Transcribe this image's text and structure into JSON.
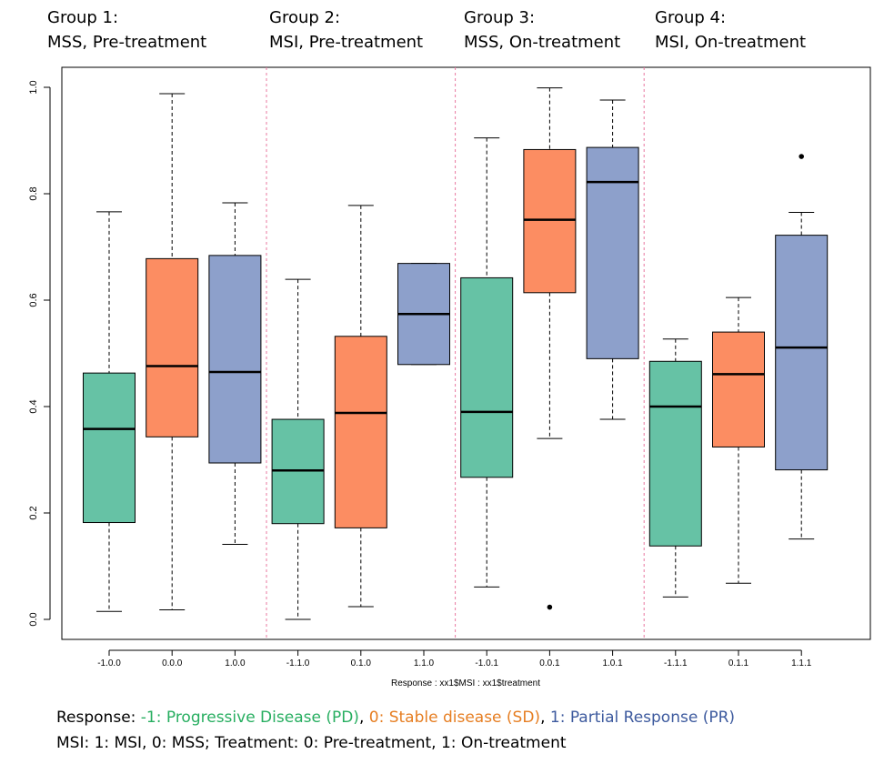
{
  "groups": [
    {
      "title": "Group 1:",
      "subtitle": "MSS, Pre-treatment"
    },
    {
      "title": "Group 2:",
      "subtitle": "MSI, Pre-treatment"
    },
    {
      "title": "Group 3:",
      "subtitle": "MSS, On-treatment"
    },
    {
      "title": "Group 4:",
      "subtitle": "MSI, On-treatment"
    }
  ],
  "chart_data": {
    "type": "box",
    "xlabel": "Response : xx1$MSI : xx1$treatment",
    "ylabel": "",
    "ylim": [
      0,
      1
    ],
    "yticks": [
      "0.0",
      "0.2",
      "0.4",
      "0.6",
      "0.8",
      "1.0"
    ],
    "grid": false,
    "categories": [
      "-1.0.0",
      "0.0.0",
      "1.0.0",
      "-1.1.0",
      "0.1.0",
      "1.1.0",
      "-1.0.1",
      "0.0.1",
      "1.0.1",
      "-1.1.1",
      "0.1.1",
      "1.1.1"
    ],
    "response_colors": {
      "-1": "#66c2a5",
      "0": "#fc8d62",
      "1": "#8da0cb"
    },
    "group_separator_color": "#e8779f",
    "boxes": [
      {
        "label": "-1.0.0",
        "response": "-1",
        "whisker_low": 0.015,
        "q1": 0.182,
        "median": 0.358,
        "q3": 0.463,
        "whisker_high": 0.766,
        "outliers": []
      },
      {
        "label": "0.0.0",
        "response": "0",
        "whisker_low": 0.018,
        "q1": 0.343,
        "median": 0.476,
        "q3": 0.678,
        "whisker_high": 0.988,
        "outliers": []
      },
      {
        "label": "1.0.0",
        "response": "1",
        "whisker_low": 0.141,
        "q1": 0.294,
        "median": 0.465,
        "q3": 0.684,
        "whisker_high": 0.783,
        "outliers": []
      },
      {
        "label": "-1.1.0",
        "response": "-1",
        "whisker_low": 0.0,
        "q1": 0.18,
        "median": 0.28,
        "q3": 0.376,
        "whisker_high": 0.639,
        "outliers": []
      },
      {
        "label": "0.1.0",
        "response": "0",
        "whisker_low": 0.024,
        "q1": 0.172,
        "median": 0.388,
        "q3": 0.532,
        "whisker_high": 0.778,
        "outliers": []
      },
      {
        "label": "1.1.0",
        "response": "1",
        "whisker_low": 0.479,
        "q1": 0.479,
        "median": 0.574,
        "q3": 0.669,
        "whisker_high": 0.669,
        "outliers": []
      },
      {
        "label": "-1.0.1",
        "response": "-1",
        "whisker_low": 0.061,
        "q1": 0.267,
        "median": 0.39,
        "q3": 0.642,
        "whisker_high": 0.905,
        "outliers": []
      },
      {
        "label": "0.0.1",
        "response": "0",
        "whisker_low": 0.34,
        "q1": 0.614,
        "median": 0.751,
        "q3": 0.883,
        "whisker_high": 0.999,
        "outliers": [
          0.023
        ]
      },
      {
        "label": "1.0.1",
        "response": "1",
        "whisker_low": 0.376,
        "q1": 0.49,
        "median": 0.822,
        "q3": 0.887,
        "whisker_high": 0.976,
        "outliers": []
      },
      {
        "label": "-1.1.1",
        "response": "-1",
        "whisker_low": 0.042,
        "q1": 0.138,
        "median": 0.4,
        "q3": 0.485,
        "whisker_high": 0.527,
        "outliers": []
      },
      {
        "label": "0.1.1",
        "response": "0",
        "whisker_low": 0.068,
        "q1": 0.324,
        "median": 0.461,
        "q3": 0.54,
        "whisker_high": 0.605,
        "outliers": []
      },
      {
        "label": "1.1.1",
        "response": "1",
        "whisker_low": 0.151,
        "q1": 0.281,
        "median": 0.511,
        "q3": 0.722,
        "whisker_high": 0.765,
        "outliers": [
          0.87
        ]
      }
    ]
  },
  "notes": {
    "response": {
      "prefix": "Response: ",
      "pd": "-1: Progressive Disease (PD)",
      "sep1": ", ",
      "sd": "0: Stable disease (SD)",
      "sep2": ", ",
      "pr": "1: Partial Response (PR)",
      "pd_color": "#27ae60",
      "sd_color": "#e67e22",
      "pr_color": "#3d5a9e"
    },
    "coding": "MSI: 1: MSI, 0: MSS; Treatment: 0: Pre-treatment, 1: On-treatment"
  }
}
